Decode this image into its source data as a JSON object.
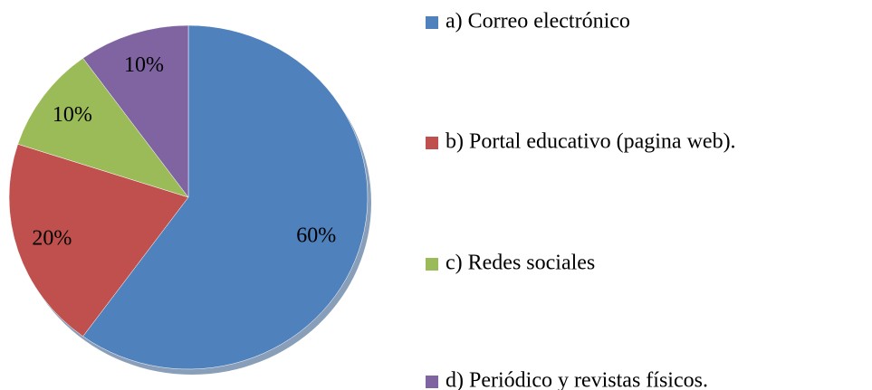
{
  "chart_data": {
    "type": "pie",
    "categories": [
      "a) Correo electrónico",
      "b) Portal educativo (pagina web).",
      "c) Redes sociales",
      "d) Periódico y revistas físicos."
    ],
    "values": [
      60,
      20,
      10,
      10
    ],
    "value_labels": [
      "60%",
      "20%",
      "10%",
      "10%"
    ],
    "colors": [
      "#4f81bd",
      "#c0504d",
      "#9bbb59",
      "#8064a2"
    ],
    "legend": "right"
  }
}
